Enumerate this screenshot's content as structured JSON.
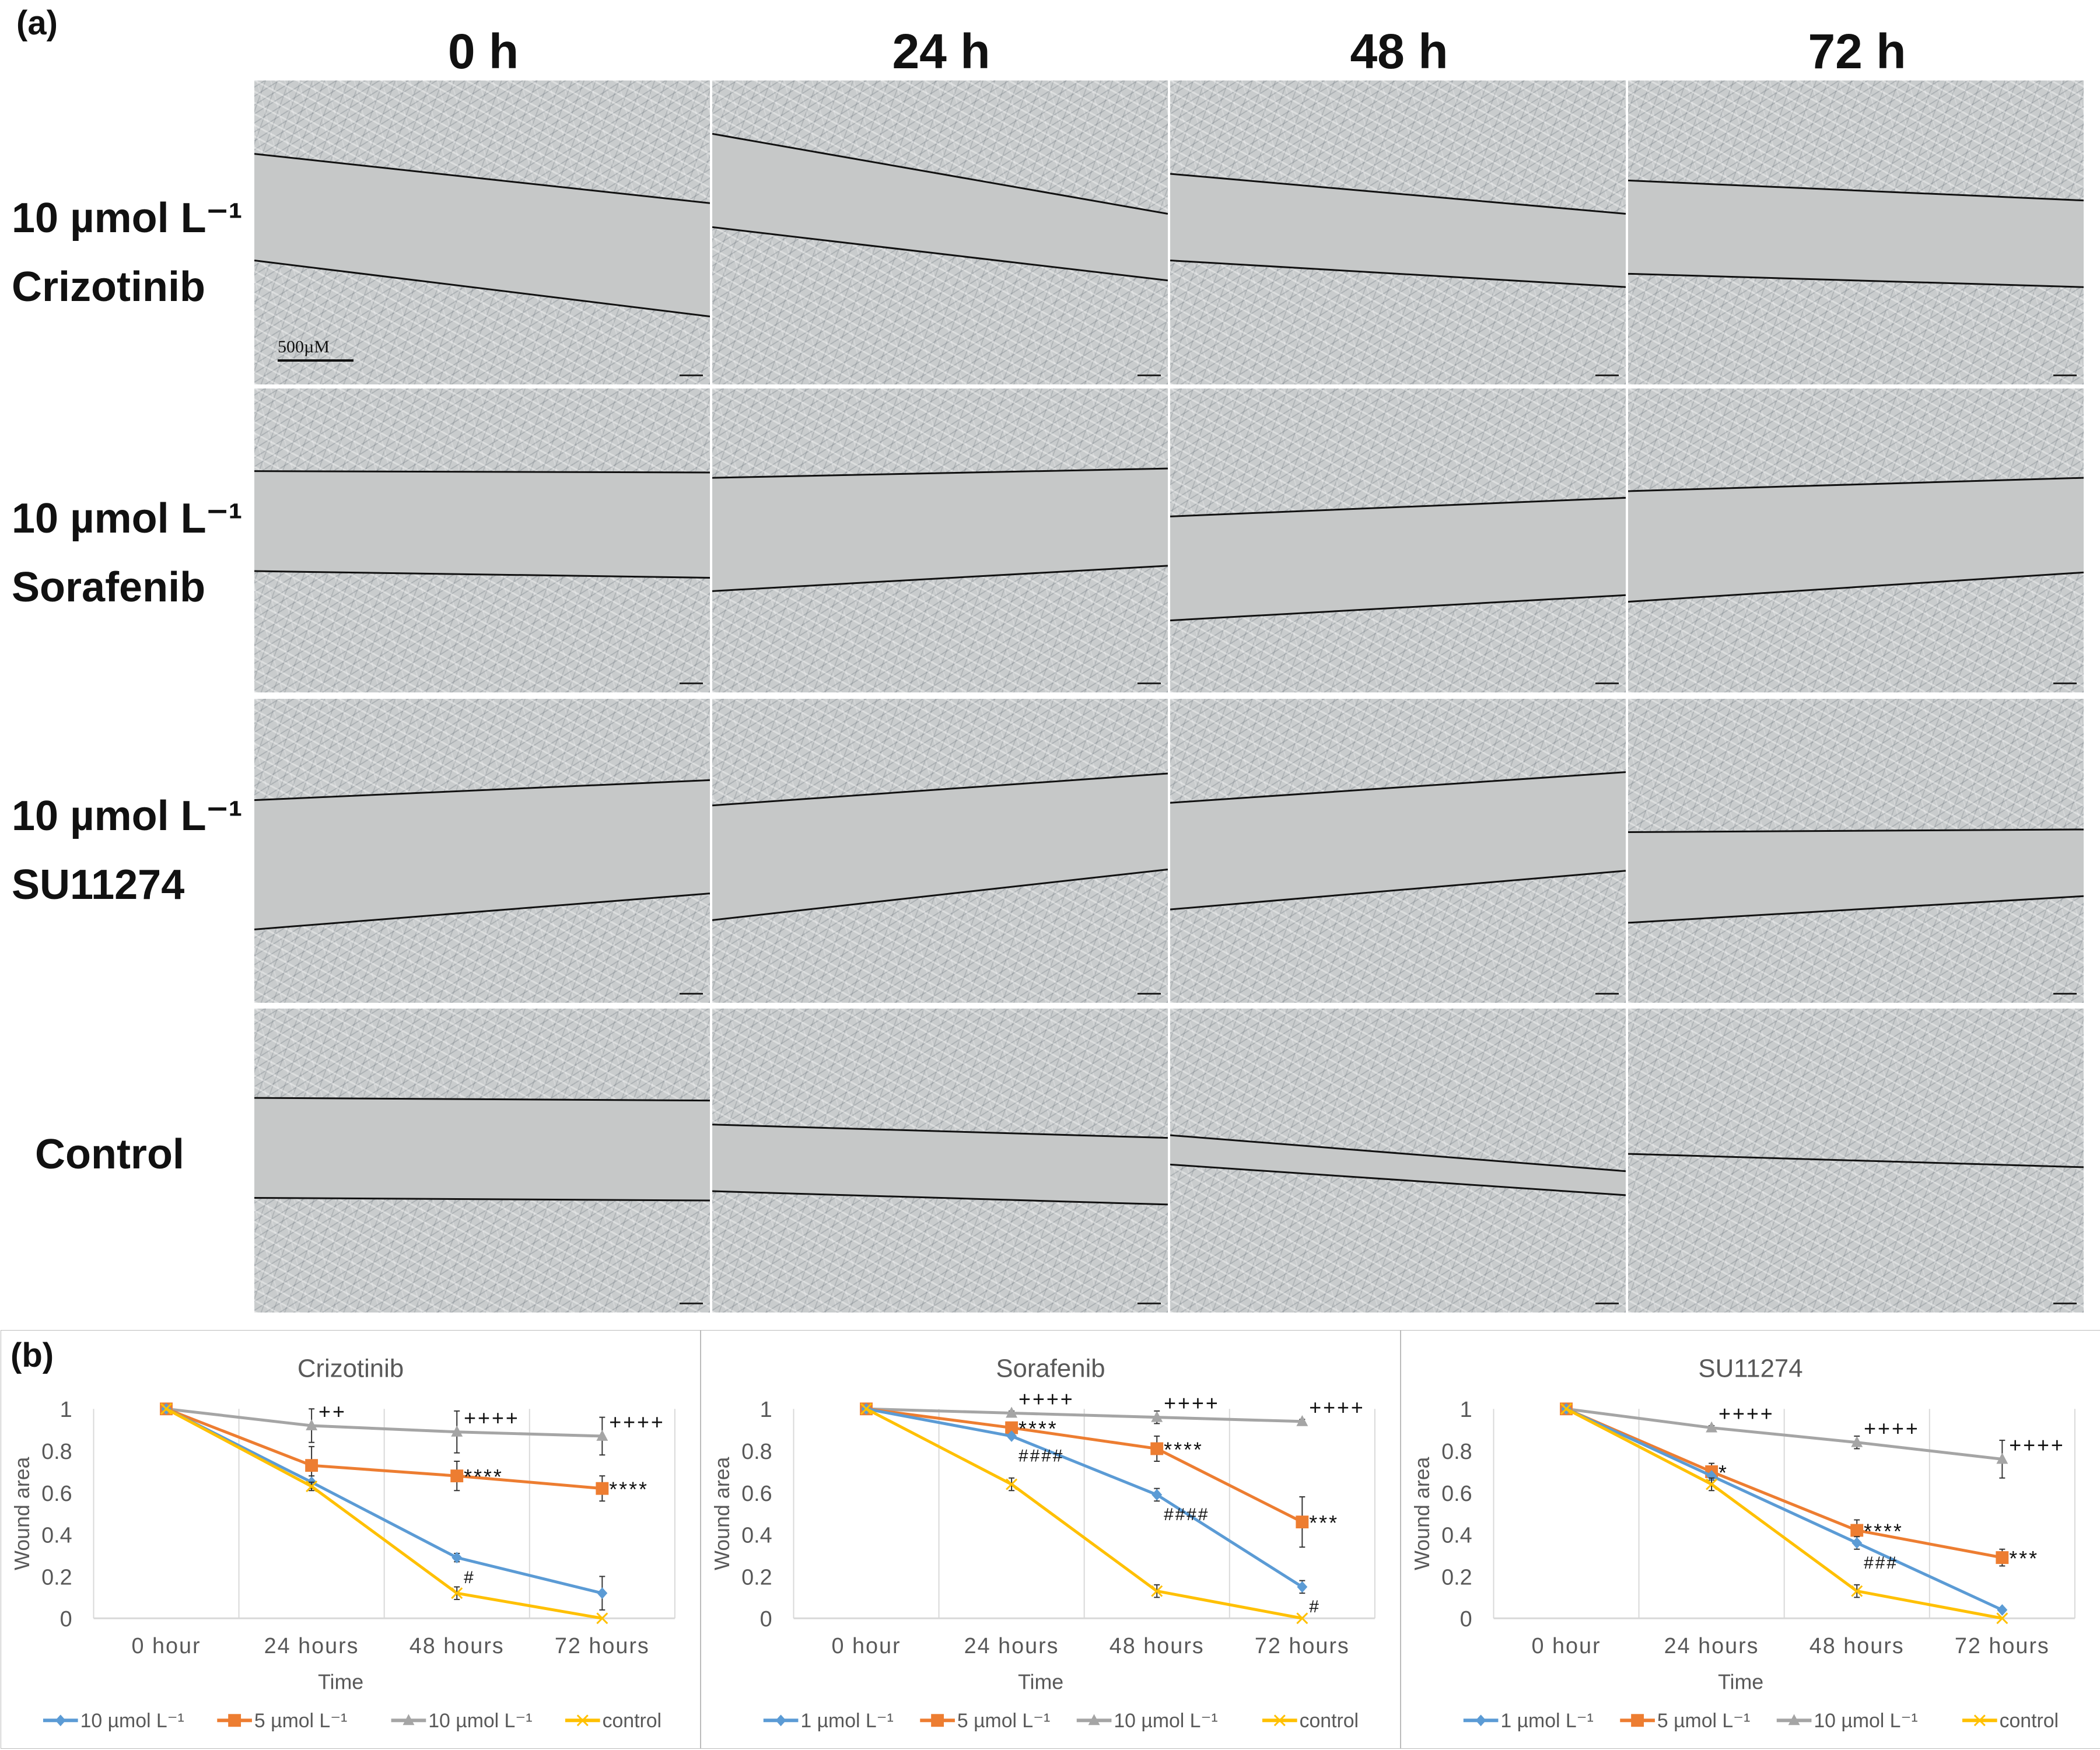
{
  "panel_a_label": "(a)",
  "panel_b_label": "(b)",
  "columns": [
    "0 h",
    "24 h",
    "48 h",
    "72 h"
  ],
  "rows": [
    {
      "line1": "10 µmol L⁻¹",
      "line2": "Crizotinib"
    },
    {
      "line1": "10 µmol L⁻¹",
      "line2": "Sorafenib"
    },
    {
      "line1": "10 µmol L⁻¹",
      "line2": "SU11274"
    },
    {
      "line1": "",
      "line2": "Control"
    }
  ],
  "scale_bar": "500µM",
  "chart_data": [
    {
      "type": "line",
      "title": "Crizotinib",
      "xlabel": "Time",
      "ylabel": "Wound area",
      "ylim": [
        0,
        1
      ],
      "yticks": [
        "0",
        "0.2",
        "0.4",
        "0.6",
        "0.8",
        "1"
      ],
      "categories": [
        "0 hour",
        "24 hours",
        "48 hours",
        "72 hours"
      ],
      "series": [
        {
          "name": "10 µmol L⁻¹",
          "color": "#5b9bd5",
          "marker": "diamond",
          "values": [
            1,
            0.65,
            0.29,
            0.12
          ],
          "err": [
            0,
            0.03,
            0.02,
            0.08
          ],
          "annotations": [
            "",
            "",
            "#",
            ""
          ]
        },
        {
          "name": "5 µmol L⁻¹",
          "color": "#ed7d31",
          "marker": "square",
          "values": [
            1,
            0.73,
            0.68,
            0.62
          ],
          "err": [
            0,
            0.09,
            0.07,
            0.06
          ],
          "annotations": [
            "",
            "",
            "****",
            "****"
          ]
        },
        {
          "name": "10 µmol L⁻¹",
          "color": "#a5a5a5",
          "marker": "triangle",
          "values": [
            1,
            0.92,
            0.89,
            0.87
          ],
          "err": [
            0,
            0.08,
            0.1,
            0.09
          ],
          "annotations": [
            "",
            "++",
            "++++",
            "++++"
          ]
        },
        {
          "name": "control",
          "color": "#ffc000",
          "marker": "x",
          "values": [
            1,
            0.63,
            0.12,
            0
          ],
          "err": [
            0,
            0.02,
            0.03,
            0
          ],
          "annotations": [
            "",
            "",
            "",
            ""
          ]
        }
      ]
    },
    {
      "type": "line",
      "title": "Sorafenib",
      "xlabel": "Time",
      "ylabel": "Wound area",
      "ylim": [
        0,
        1
      ],
      "yticks": [
        "0",
        "0.2",
        "0.4",
        "0.6",
        "0.8",
        "1"
      ],
      "categories": [
        "0 hour",
        "24 hours",
        "48 hours",
        "72 hours"
      ],
      "series": [
        {
          "name": "1 µmol L⁻¹",
          "color": "#5b9bd5",
          "marker": "diamond",
          "values": [
            1,
            0.87,
            0.59,
            0.15
          ],
          "err": [
            0,
            0.01,
            0.03,
            0.03
          ],
          "annotations": [
            "",
            "####",
            "####",
            "#"
          ]
        },
        {
          "name": "5 µmol L⁻¹",
          "color": "#ed7d31",
          "marker": "square",
          "values": [
            1,
            0.91,
            0.81,
            0.46
          ],
          "err": [
            0,
            0.01,
            0.06,
            0.12
          ],
          "annotations": [
            "",
            "****",
            "****",
            "***"
          ]
        },
        {
          "name": "10 µmol L⁻¹",
          "color": "#a5a5a5",
          "marker": "triangle",
          "values": [
            1,
            0.98,
            0.96,
            0.94
          ],
          "err": [
            0,
            0.01,
            0.03,
            0.01
          ],
          "annotations": [
            "",
            "++++",
            "++++",
            "++++"
          ]
        },
        {
          "name": "control",
          "color": "#ffc000",
          "marker": "x",
          "values": [
            1,
            0.64,
            0.13,
            0
          ],
          "err": [
            0,
            0.03,
            0.03,
            0
          ],
          "annotations": [
            "",
            "",
            "",
            ""
          ]
        }
      ]
    },
    {
      "type": "line",
      "title": "SU11274",
      "xlabel": "Time",
      "ylabel": "Wound area",
      "ylim": [
        0,
        1
      ],
      "yticks": [
        "0",
        "0.2",
        "0.4",
        "0.6",
        "0.8",
        "1"
      ],
      "categories": [
        "0 hour",
        "24 hours",
        "48 hours",
        "72 hours"
      ],
      "series": [
        {
          "name": "1 µmol L⁻¹",
          "color": "#5b9bd5",
          "marker": "diamond",
          "values": [
            1,
            0.68,
            0.36,
            0.04
          ],
          "err": [
            0,
            0.01,
            0.03,
            0.01
          ],
          "annotations": [
            "",
            "",
            "###",
            ""
          ]
        },
        {
          "name": "5 µmol L⁻¹",
          "color": "#ed7d31",
          "marker": "square",
          "values": [
            1,
            0.7,
            0.42,
            0.29
          ],
          "err": [
            0,
            0.04,
            0.05,
            0.04
          ],
          "annotations": [
            "",
            "*",
            "****",
            "***"
          ]
        },
        {
          "name": "10 µmol L⁻¹",
          "color": "#a5a5a5",
          "marker": "triangle",
          "values": [
            1,
            0.91,
            0.84,
            0.76
          ],
          "err": [
            0,
            0.01,
            0.03,
            0.09
          ],
          "annotations": [
            "",
            "++++",
            "++++",
            "++++"
          ]
        },
        {
          "name": "control",
          "color": "#ffc000",
          "marker": "x",
          "values": [
            1,
            0.64,
            0.13,
            0
          ],
          "err": [
            0,
            0.03,
            0.03,
            0
          ],
          "annotations": [
            "",
            "",
            "",
            ""
          ]
        }
      ]
    }
  ]
}
